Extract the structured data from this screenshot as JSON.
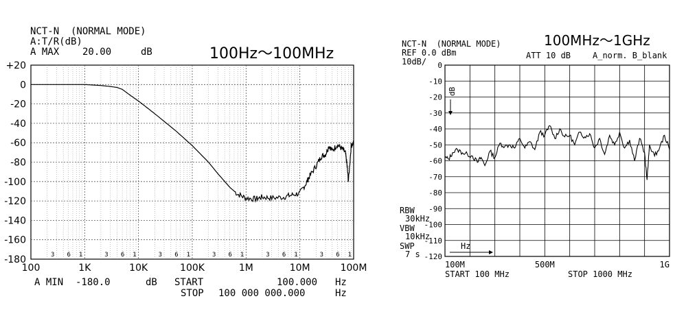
{
  "chart_data": [
    {
      "type": "line",
      "header": {
        "line1": "NCT-N  (NORMAL MODE)",
        "line2": "A:T/R(dB)",
        "line3_label": "A MAX",
        "line3_value": "20.00",
        "line3_unit": "dB"
      },
      "title": "100Hz〜100MHz",
      "xscale": "log",
      "xlim": [
        100,
        100000000
      ],
      "ylim": [
        -180,
        20
      ],
      "grid": true,
      "x_ticks": [
        {
          "v": 100,
          "label": "100"
        },
        {
          "v": 1000,
          "label": "1K"
        },
        {
          "v": 10000,
          "label": "10K"
        },
        {
          "v": 100000,
          "label": "100K"
        },
        {
          "v": 1000000,
          "label": "1M"
        },
        {
          "v": 10000000,
          "label": "10M"
        },
        {
          "v": 100000000,
          "label": "100M"
        }
      ],
      "minor_labels": [
        "3",
        "6",
        "1"
      ],
      "y_ticks": [
        {
          "v": 20,
          "label": "+20"
        },
        {
          "v": 0,
          "label": "0"
        },
        {
          "v": -20,
          "label": "-20"
        },
        {
          "v": -40,
          "label": "-40"
        },
        {
          "v": -60,
          "label": "-60"
        },
        {
          "v": -80,
          "label": "-80"
        },
        {
          "v": -100,
          "label": "-100"
        },
        {
          "v": -120,
          "label": "-120"
        },
        {
          "v": -140,
          "label": "-140"
        },
        {
          "v": -160,
          "label": "-160"
        },
        {
          "v": -180,
          "label": "-180"
        }
      ],
      "footer": {
        "min_label": "A MIN",
        "min_value": "-180.0",
        "min_unit": "dB",
        "start_label": "START",
        "start_value": "100.000",
        "start_unit": "Hz",
        "stop_label": "STOP",
        "stop_value": "100 000 000.000",
        "stop_unit": "Hz"
      },
      "series": [
        {
          "x": [
            100,
            300,
            1000,
            2000,
            3000,
            4000,
            5000,
            7000,
            10000,
            20000,
            50000,
            100000,
            200000,
            300000,
            500000,
            700000,
            1000000,
            1500000,
            2000000,
            3000000,
            5000000,
            7000000,
            10000000,
            13000000,
            15000000,
            20000000,
            25000000,
            30000000,
            35000000,
            40000000,
            50000000,
            60000000,
            70000000,
            75000000,
            80000000,
            90000000,
            100000000
          ],
          "y": [
            0,
            0,
            0,
            -1,
            -2,
            -3,
            -5,
            -11,
            -17,
            -30,
            -48,
            -63,
            -80,
            -92,
            -106,
            -113,
            -117,
            -118,
            -116,
            -117,
            -116,
            -114,
            -112,
            -102,
            -95,
            -84,
            -74,
            -72,
            -63,
            -68,
            -62,
            -66,
            -70,
            -82,
            -100,
            -63,
            -60
          ]
        }
      ]
    },
    {
      "type": "line",
      "header": {
        "line1": "NCT-N  (NORMAL MODE)",
        "line2": "REF 0.0 dBm",
        "line3": "10dB/",
        "att": "ATT 10 dB",
        "trace": "A_norm. B_blank"
      },
      "title": "100MHz〜1GHz",
      "xscale": "linear",
      "xlim": [
        100,
        1000
      ],
      "ylim": [
        -120,
        0
      ],
      "grid": true,
      "x_ticks": [
        {
          "v": 100,
          "label": "100M"
        },
        {
          "v": 500,
          "label": "500M"
        },
        {
          "v": 1000,
          "label": "1G"
        }
      ],
      "y_ticks": [
        {
          "v": 0,
          "label": "0"
        },
        {
          "v": -10,
          "label": "-10"
        },
        {
          "v": -20,
          "label": "-20"
        },
        {
          "v": -30,
          "label": "-30"
        },
        {
          "v": -40,
          "label": "-40"
        },
        {
          "v": -50,
          "label": "-50"
        },
        {
          "v": -60,
          "label": "-60"
        },
        {
          "v": -70,
          "label": "-70"
        },
        {
          "v": -80,
          "label": "-80"
        },
        {
          "v": -90,
          "label": "-90"
        },
        {
          "v": -100,
          "label": "-100"
        },
        {
          "v": -110,
          "label": "-110"
        },
        {
          "v": -120,
          "label": "-120"
        }
      ],
      "marker_label": "dB",
      "axis_arrow_label": "Hz",
      "settings": [
        {
          "label": "RBW",
          "value": "30kHz"
        },
        {
          "label": "VBW",
          "value": "10kHz"
        },
        {
          "label": "SWP",
          "value": "7 s"
        }
      ],
      "footer": {
        "start": "START 100 MHz",
        "stop": "STOP 1000 MHz"
      },
      "series": [
        {
          "x": [
            100,
            115,
            130,
            150,
            170,
            190,
            210,
            230,
            245,
            260,
            280,
            300,
            320,
            340,
            360,
            380,
            400,
            420,
            440,
            460,
            480,
            500,
            520,
            540,
            560,
            580,
            600,
            620,
            640,
            660,
            680,
            700,
            720,
            740,
            760,
            780,
            800,
            820,
            840,
            860,
            880,
            900,
            910,
            920,
            940,
            960,
            980,
            1000
          ],
          "y": [
            -58,
            -59,
            -55,
            -53,
            -55,
            -56,
            -57,
            -61,
            -58,
            -63,
            -54,
            -58,
            -49,
            -51,
            -50,
            -52,
            -46,
            -52,
            -48,
            -53,
            -42,
            -44,
            -38,
            -46,
            -40,
            -45,
            -44,
            -50,
            -42,
            -45,
            -43,
            -52,
            -46,
            -56,
            -44,
            -50,
            -42,
            -52,
            -47,
            -60,
            -46,
            -55,
            -72,
            -50,
            -57,
            -52,
            -44,
            -53
          ]
        }
      ]
    }
  ]
}
